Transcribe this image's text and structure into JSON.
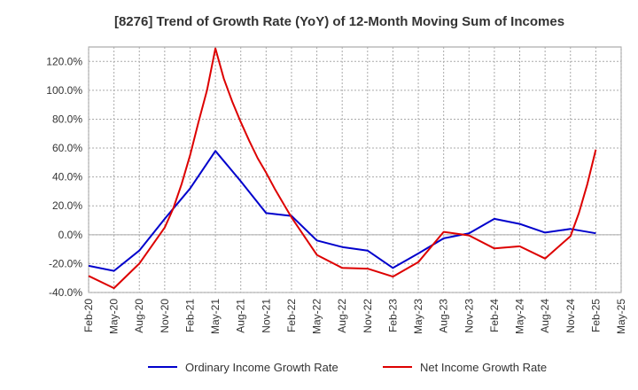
{
  "chart_data": {
    "type": "line",
    "title": "[8276]  Trend of Growth Rate (YoY) of 12-Month Moving Sum of Incomes",
    "xlabel": "",
    "ylabel": "",
    "ylim": [
      -40,
      130
    ],
    "yticks": [
      -40,
      -20,
      0,
      20,
      40,
      60,
      80,
      100,
      120
    ],
    "ytick_labels": [
      "-40.0%",
      "-20.0%",
      "0.0%",
      "20.0%",
      "40.0%",
      "60.0%",
      "80.0%",
      "100.0%",
      "120.0%"
    ],
    "x_tick_labels": [
      "Feb-20",
      "May-20",
      "Aug-20",
      "Nov-20",
      "Feb-21",
      "May-21",
      "Aug-21",
      "Nov-21",
      "Feb-22",
      "May-22",
      "Aug-22",
      "Nov-22",
      "Feb-23",
      "May-23",
      "Aug-23",
      "Nov-23",
      "Feb-24",
      "May-24",
      "Aug-24",
      "Nov-24",
      "Feb-25",
      "May-25"
    ],
    "grid": true,
    "legend_position": "bottom",
    "series": [
      {
        "name": "Ordinary Income Growth Rate",
        "color": "#0000cc",
        "x": [
          "Feb-20",
          "May-20",
          "Aug-20",
          "Nov-20",
          "Feb-21",
          "May-21",
          "Aug-21",
          "Nov-21",
          "Feb-22",
          "May-22",
          "Aug-22",
          "Nov-22",
          "Feb-23",
          "May-23",
          "Aug-23",
          "Nov-23",
          "Feb-24",
          "May-24",
          "Aug-24",
          "Nov-24",
          "Feb-25"
        ],
        "values": [
          -21.5,
          -25,
          -11,
          11,
          32,
          58,
          37,
          15,
          13,
          -4,
          -8.5,
          -11,
          -23,
          -13,
          -2.5,
          1,
          11,
          7.5,
          1.5,
          4,
          1
        ]
      },
      {
        "name": "Net Income Growth Rate",
        "color": "#dd0000",
        "x": [
          "Feb-20",
          "May-20",
          "Aug-20",
          "Nov-20",
          "Dec-20",
          "Jan-21",
          "Feb-21",
          "Mar-21",
          "Apr-21",
          "May-21",
          "Jun-21",
          "Jul-21",
          "Aug-21",
          "Sep-21",
          "Oct-21",
          "Nov-21",
          "Dec-21",
          "Jan-22",
          "Feb-22",
          "May-22",
          "Aug-22",
          "Nov-22",
          "Feb-23",
          "May-23",
          "Aug-23",
          "Nov-23",
          "Feb-24",
          "May-24",
          "Aug-24",
          "Nov-24",
          "Dec-24",
          "Jan-25",
          "Feb-25"
        ],
        "values": [
          -28.5,
          -37,
          -20,
          5,
          18,
          35,
          55,
          78,
          100,
          129,
          108,
          92,
          78,
          65,
          53,
          43,
          32,
          22,
          12,
          -14,
          -23,
          -23.5,
          -29,
          -19,
          2,
          -0.5,
          -9.5,
          -8,
          -16.5,
          -1,
          15,
          35,
          59
        ]
      }
    ]
  }
}
